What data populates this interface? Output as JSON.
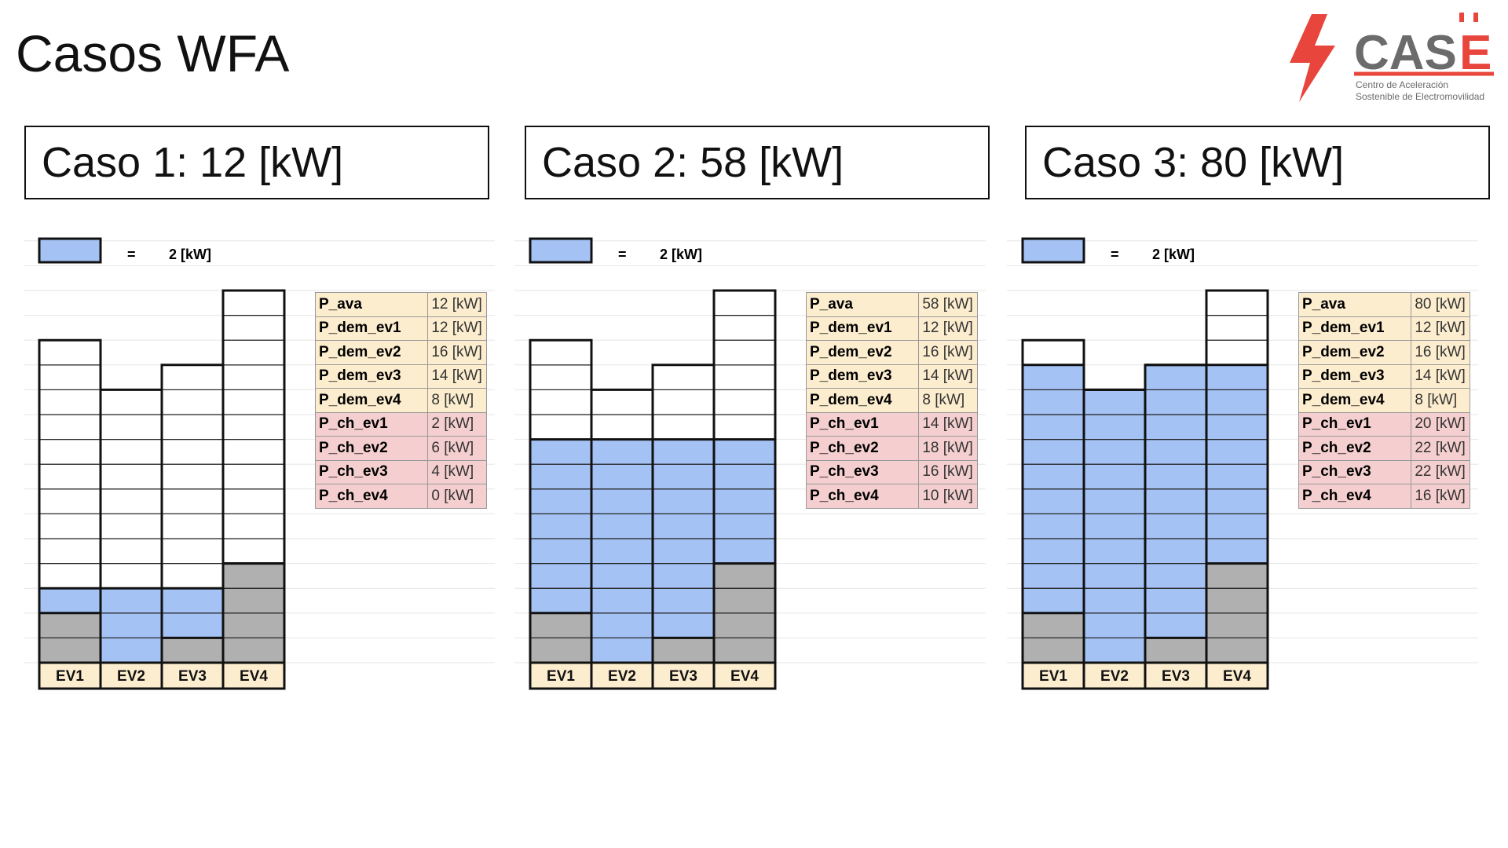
{
  "title": "Casos WFA",
  "logo": {
    "brand": "CASE",
    "subtitle_line1": "Centro de Aceleración",
    "subtitle_line2": "Sostenible de Electromovilidad"
  },
  "legend": {
    "equals": "=",
    "value": "2 [kW]"
  },
  "colors": {
    "charge": "#a4c2f4",
    "occupied": "#b0b0b0",
    "empty": "#ffffff",
    "label_bg": "#fdedcf",
    "dem_bg": "#fdedcf",
    "ch_bg": "#f5cfcf",
    "logo_red": "#e8453c",
    "logo_gray": "#6b6b6b"
  },
  "cases": [
    {
      "heading": "Caso 1: 12 [kW]",
      "evs": [
        "EV1",
        "EV2",
        "EV3",
        "EV4"
      ],
      "grid": {
        "occupied_units": [
          2,
          0,
          1,
          4
        ],
        "charge_units": [
          1,
          3,
          2,
          0
        ],
        "capacity_units": [
          13,
          11,
          12,
          15
        ]
      },
      "rows": [
        {
          "k": "P_ava",
          "v": "12 [kW]",
          "type": "dem"
        },
        {
          "k": "P_dem_ev1",
          "v": "12 [kW]",
          "type": "dem"
        },
        {
          "k": "P_dem_ev2",
          "v": "16 [kW]",
          "type": "dem"
        },
        {
          "k": "P_dem_ev3",
          "v": "14 [kW]",
          "type": "dem"
        },
        {
          "k": "P_dem_ev4",
          "v": "8 [kW]",
          "type": "dem"
        },
        {
          "k": "P_ch_ev1",
          "v": "2 [kW]",
          "type": "ch"
        },
        {
          "k": "P_ch_ev2",
          "v": "6 [kW]",
          "type": "ch"
        },
        {
          "k": "P_ch_ev3",
          "v": "4 [kW]",
          "type": "ch"
        },
        {
          "k": "P_ch_ev4",
          "v": "0 [kW]",
          "type": "ch"
        }
      ]
    },
    {
      "heading": "Caso 2: 58 [kW]",
      "evs": [
        "EV1",
        "EV2",
        "EV3",
        "EV4"
      ],
      "grid": {
        "occupied_units": [
          2,
          0,
          1,
          4
        ],
        "charge_units": [
          7,
          9,
          8,
          5
        ],
        "capacity_units": [
          13,
          11,
          12,
          15
        ]
      },
      "rows": [
        {
          "k": "P_ava",
          "v": "58 [kW]",
          "type": "dem"
        },
        {
          "k": "P_dem_ev1",
          "v": "12 [kW]",
          "type": "dem"
        },
        {
          "k": "P_dem_ev2",
          "v": "16 [kW]",
          "type": "dem"
        },
        {
          "k": "P_dem_ev3",
          "v": "14 [kW]",
          "type": "dem"
        },
        {
          "k": "P_dem_ev4",
          "v": "8 [kW]",
          "type": "dem"
        },
        {
          "k": "P_ch_ev1",
          "v": "14 [kW]",
          "type": "ch"
        },
        {
          "k": "P_ch_ev2",
          "v": "18 [kW]",
          "type": "ch"
        },
        {
          "k": "P_ch_ev3",
          "v": "16 [kW]",
          "type": "ch"
        },
        {
          "k": "P_ch_ev4",
          "v": "10 [kW]",
          "type": "ch"
        }
      ]
    },
    {
      "heading": "Caso 3: 80 [kW]",
      "evs": [
        "EV1",
        "EV2",
        "EV3",
        "EV4"
      ],
      "grid": {
        "occupied_units": [
          2,
          0,
          1,
          4
        ],
        "charge_units": [
          10,
          11,
          11,
          8
        ],
        "capacity_units": [
          13,
          11,
          12,
          15
        ]
      },
      "rows": [
        {
          "k": "P_ava",
          "v": "80 [kW]",
          "type": "dem"
        },
        {
          "k": "P_dem_ev1",
          "v": "12 [kW]",
          "type": "dem"
        },
        {
          "k": "P_dem_ev2",
          "v": "16 [kW]",
          "type": "dem"
        },
        {
          "k": "P_dem_ev3",
          "v": "14 [kW]",
          "type": "dem"
        },
        {
          "k": "P_dem_ev4",
          "v": "8 [kW]",
          "type": "dem"
        },
        {
          "k": "P_ch_ev1",
          "v": "20 [kW]",
          "type": "ch"
        },
        {
          "k": "P_ch_ev2",
          "v": "22 [kW]",
          "type": "ch"
        },
        {
          "k": "P_ch_ev3",
          "v": "22 [kW]",
          "type": "ch"
        },
        {
          "k": "P_ch_ev4",
          "v": "16 [kW]",
          "type": "ch"
        }
      ]
    }
  ]
}
